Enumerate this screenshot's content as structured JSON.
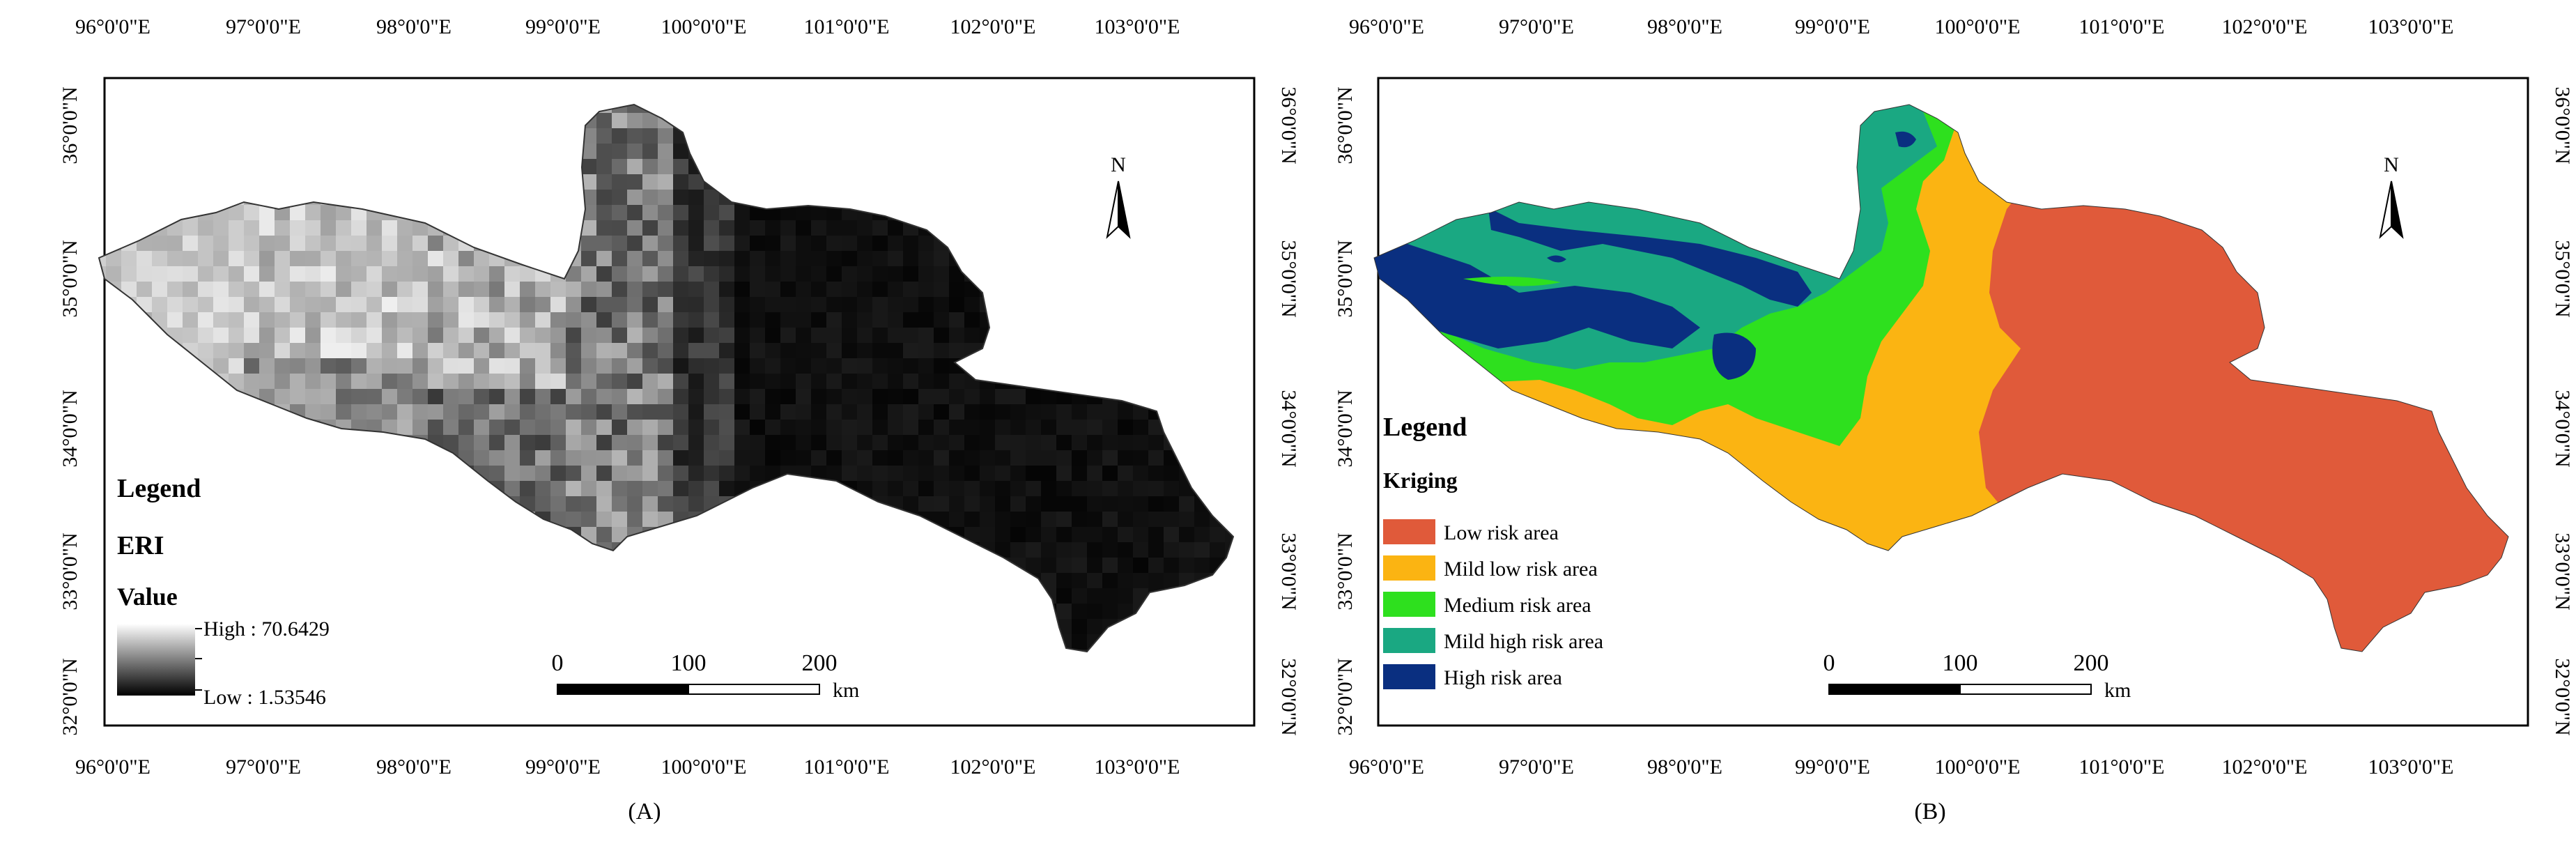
{
  "panels": [
    {
      "id": "A",
      "caption": "(A)",
      "top_ticks": [
        "96°0'0\"E",
        "97°0'0\"E",
        "98°0'0\"E",
        "99°0'0\"E",
        "100°0'0\"E",
        "101°0'0\"E",
        "102°0'0\"E",
        "103°0'0\"E"
      ],
      "bottom_ticks": [
        "96°0'0\"E",
        "97°0'0\"E",
        "98°0'0\"E",
        "99°0'0\"E",
        "100°0'0\"E",
        "101°0'0\"E",
        "102°0'0\"E",
        "103°0'0\"E"
      ],
      "left_ticks": [
        "36°0'0\"N",
        "35°0'0\"N",
        "34°0'0\"N",
        "33°0'0\"N",
        "32°0'0\"N"
      ],
      "right_ticks": [
        "36°0'0\"N",
        "35°0'0\"N",
        "34°0'0\"N",
        "33°0'0\"N",
        "32°0'0\"N"
      ],
      "north_label": "N",
      "legend": {
        "title": "Legend",
        "layer": "ERI",
        "field": "Value",
        "high_label": "High : 70.6429",
        "low_label": "Low : 1.53546",
        "ramp_colors": [
          "#ffffff",
          "#000000"
        ]
      },
      "scale": {
        "labels": [
          "0",
          "100",
          "200"
        ],
        "unit": "km"
      }
    },
    {
      "id": "B",
      "caption": "(B)",
      "top_ticks": [
        "96°0'0\"E",
        "97°0'0\"E",
        "98°0'0\"E",
        "99°0'0\"E",
        "100°0'0\"E",
        "101°0'0\"E",
        "102°0'0\"E",
        "103°0'0\"E"
      ],
      "bottom_ticks": [
        "96°0'0\"E",
        "97°0'0\"E",
        "98°0'0\"E",
        "99°0'0\"E",
        "100°0'0\"E",
        "101°0'0\"E",
        "102°0'0\"E",
        "103°0'0\"E"
      ],
      "left_ticks": [
        "36°0'0\"N",
        "35°0'0\"N",
        "34°0'0\"N",
        "33°0'0\"N",
        "32°0'0\"N"
      ],
      "right_ticks": [
        "36°0'0\"N",
        "35°0'0\"N",
        "34°0'0\"N",
        "33°0'0\"N",
        "32°0'0\"N"
      ],
      "north_label": "N",
      "legend": {
        "title": "Legend",
        "layer": "Kriging",
        "classes": [
          {
            "label": "Low risk area",
            "color": "#e05a3a"
          },
          {
            "label": "Mild low risk area",
            "color": "#fbb412"
          },
          {
            "label": "Medium risk area",
            "color": "#2ee01e"
          },
          {
            "label": "Mild high risk area",
            "color": "#1aa882"
          },
          {
            "label": "High risk area",
            "color": "#0a2f80"
          }
        ]
      },
      "scale": {
        "labels": [
          "0",
          "100",
          "200"
        ],
        "unit": "km"
      }
    }
  ]
}
